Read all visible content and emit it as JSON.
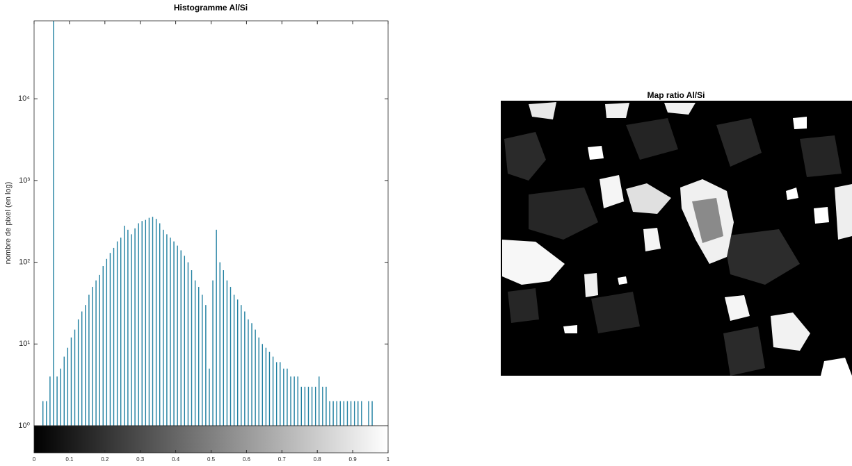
{
  "chart_data": [
    {
      "type": "histogram",
      "title": "Histogramme Al/Si",
      "ylabel": "nombre de pixel (en log)",
      "yscale": "log",
      "color": "#1f7fa0",
      "bins": [
        0,
        0.01,
        0.02,
        0.03,
        0.04,
        0.05,
        0.06,
        0.07,
        0.08,
        0.09,
        0.1,
        0.11,
        0.12,
        0.13,
        0.14,
        0.15,
        0.16,
        0.17,
        0.18,
        0.19,
        0.2,
        0.21,
        0.22,
        0.23,
        0.24,
        0.25,
        0.26,
        0.27,
        0.28,
        0.29,
        0.3,
        0.31,
        0.32,
        0.33,
        0.34,
        0.35,
        0.36,
        0.37,
        0.38,
        0.39,
        0.4,
        0.41,
        0.42,
        0.43,
        0.44,
        0.45,
        0.46,
        0.47,
        0.48,
        0.49,
        0.5,
        0.51,
        0.52,
        0.53,
        0.54,
        0.55,
        0.56,
        0.57,
        0.58,
        0.59,
        0.6,
        0.61,
        0.62,
        0.63,
        0.64,
        0.65,
        0.66,
        0.67,
        0.68,
        0.69,
        0.7,
        0.71,
        0.72,
        0.73,
        0.74,
        0.75,
        0.76,
        0.77,
        0.78,
        0.79,
        0.8,
        0.81,
        0.82,
        0.83,
        0.84,
        0.85,
        0.86,
        0.87,
        0.88,
        0.89,
        0.9,
        0.91,
        0.92,
        0.93,
        0.94,
        0.95,
        0.96,
        0.97,
        0.98,
        0.99,
        1
      ],
      "values": [
        0,
        0,
        2,
        2,
        4,
        90000,
        4,
        5,
        7,
        9,
        12,
        15,
        20,
        25,
        30,
        40,
        50,
        60,
        70,
        90,
        110,
        130,
        150,
        180,
        200,
        280,
        250,
        220,
        260,
        300,
        320,
        330,
        350,
        360,
        340,
        300,
        250,
        220,
        200,
        180,
        160,
        140,
        120,
        100,
        80,
        60,
        50,
        40,
        30,
        5,
        60,
        250,
        100,
        80,
        60,
        50,
        40,
        35,
        30,
        25,
        20,
        18,
        15,
        12,
        10,
        9,
        8,
        7,
        6,
        6,
        5,
        5,
        4,
        4,
        4,
        3,
        3,
        3,
        3,
        3,
        4,
        3,
        3,
        2,
        2,
        2,
        2,
        2,
        2,
        2,
        2,
        2,
        2,
        0,
        2,
        2,
        0,
        0,
        0,
        0
      ],
      "xlim": [
        0,
        1
      ],
      "xticks": [
        0,
        0.1,
        0.2,
        0.3,
        0.4,
        0.5,
        0.6,
        0.7,
        0.8,
        0.9,
        1
      ],
      "ylim": [
        1,
        90000
      ],
      "yticks": [
        {
          "value": 1,
          "label": "10⁰"
        },
        {
          "value": 10,
          "label": "10¹"
        },
        {
          "value": 100,
          "label": "10²"
        },
        {
          "value": 1000,
          "label": "10³"
        },
        {
          "value": 10000,
          "label": "10⁴"
        }
      ],
      "colorbar": "gray"
    },
    {
      "type": "image",
      "title": "Map ratio Al/Si"
    }
  ]
}
